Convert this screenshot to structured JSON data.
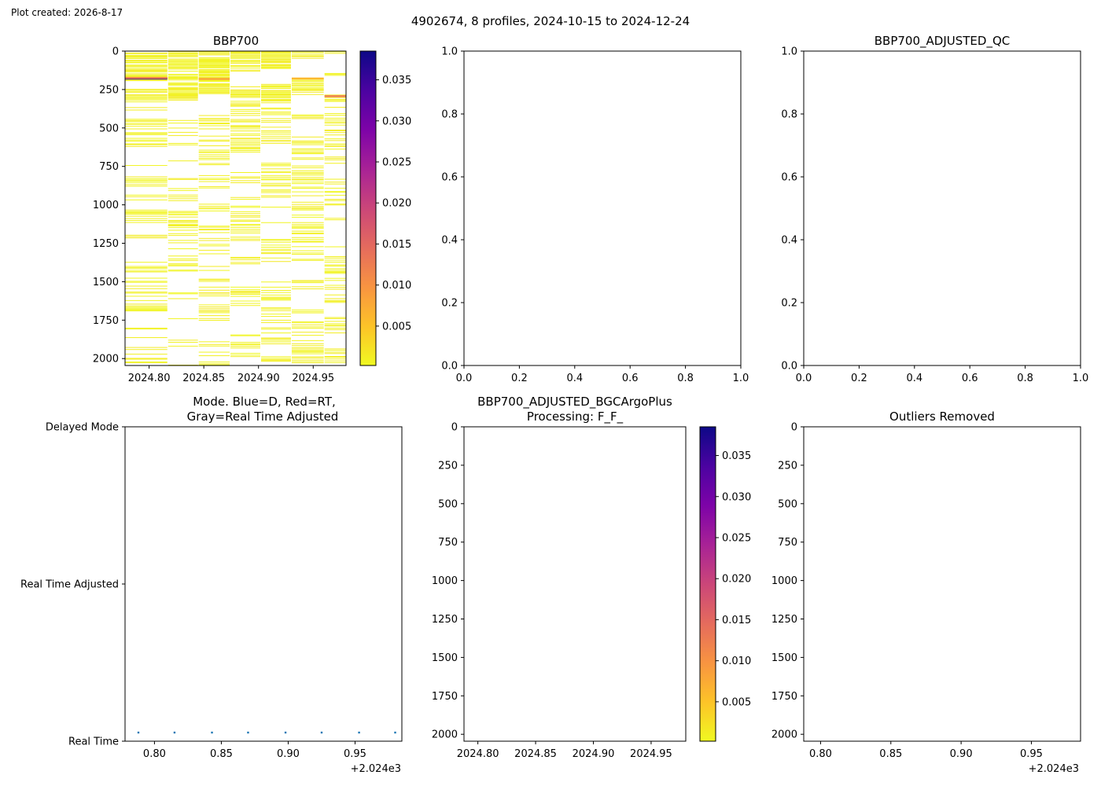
{
  "figure": {
    "created_label": "Plot created: 2026-8-17",
    "suptitle": "4902674, 8 profiles, 2024-10-15 to 2024-12-24"
  },
  "chart_data": [
    {
      "id": "bbp700",
      "type": "heatmap",
      "title": "BBP700",
      "x_ticks": [
        "2024.80",
        "2024.85",
        "2024.90",
        "2024.95"
      ],
      "x_tick_values": [
        2024.8,
        2024.85,
        2024.9,
        2024.95
      ],
      "xlim": [
        2024.778,
        2024.98
      ],
      "y_ticks": [
        "0",
        "250",
        "500",
        "750",
        "1000",
        "1250",
        "1500",
        "1750",
        "2000"
      ],
      "y_tick_values": [
        0,
        250,
        500,
        750,
        1000,
        1250,
        1500,
        1750,
        2000
      ],
      "ylim": [
        2045,
        0
      ],
      "y_inverted": true,
      "colorbar": {
        "cmap": "plasma_r",
        "range": [
          0.0002,
          0.0385
        ],
        "ticks": [
          "0.005",
          "0.010",
          "0.015",
          "0.020",
          "0.025",
          "0.030",
          "0.035"
        ],
        "tick_values": [
          0.005,
          0.01,
          0.015,
          0.02,
          0.025,
          0.03,
          0.035
        ]
      },
      "profiles": [
        {
          "x0": 2024.778,
          "x1": 2024.817
        },
        {
          "x0": 2024.817,
          "x1": 2024.845
        },
        {
          "x0": 2024.845,
          "x1": 2024.874
        },
        {
          "x0": 2024.874,
          "x1": 2024.902
        },
        {
          "x0": 2024.902,
          "x1": 2024.93
        },
        {
          "x0": 2024.93,
          "x1": 2024.96
        },
        {
          "x0": 2024.96,
          "x1": 2024.98
        }
      ],
      "highlights": [
        {
          "profile": 0,
          "depth": 172,
          "value": 0.038
        },
        {
          "profile": 0,
          "depth": 168,
          "value": 0.012
        },
        {
          "profile": 2,
          "depth": 175,
          "value": 0.008
        },
        {
          "profile": 5,
          "depth": 172,
          "value": 0.006
        },
        {
          "profile": 6,
          "depth": 287,
          "value": 0.012
        }
      ]
    },
    {
      "id": "empty-1",
      "type": "line",
      "title": "",
      "x_ticks": [
        "0.0",
        "0.2",
        "0.4",
        "0.6",
        "0.8",
        "1.0"
      ],
      "x_tick_values": [
        0,
        0.2,
        0.4,
        0.6,
        0.8,
        1.0
      ],
      "y_ticks": [
        "0.0",
        "0.2",
        "0.4",
        "0.6",
        "0.8",
        "1.0"
      ],
      "y_tick_values": [
        0,
        0.2,
        0.4,
        0.6,
        0.8,
        1.0
      ],
      "xlim": [
        0,
        1
      ],
      "ylim": [
        0,
        1
      ]
    },
    {
      "id": "bbp700-adjusted-qc",
      "type": "line",
      "title": "BBP700_ADJUSTED_QC",
      "x_ticks": [
        "0.0",
        "0.2",
        "0.4",
        "0.6",
        "0.8",
        "1.0"
      ],
      "x_tick_values": [
        0,
        0.2,
        0.4,
        0.6,
        0.8,
        1.0
      ],
      "y_ticks": [
        "0.0",
        "0.2",
        "0.4",
        "0.6",
        "0.8",
        "1.0"
      ],
      "y_tick_values": [
        0,
        0.2,
        0.4,
        0.6,
        0.8,
        1.0
      ],
      "xlim": [
        0,
        1
      ],
      "ylim": [
        0,
        1
      ]
    },
    {
      "id": "mode",
      "type": "scatter",
      "title_lines": [
        "Mode. Blue=D, Red=RT,",
        "Gray=Real Time Adjusted"
      ],
      "x_ticks": [
        "0.80",
        "0.85",
        "0.90",
        "0.95"
      ],
      "x_tick_values": [
        0.8,
        0.85,
        0.9,
        0.95
      ],
      "x_offset_label": "+2.024e3",
      "xlim": [
        0.778,
        0.985
      ],
      "y_ticks": [
        "Real Time",
        "Real Time Adjusted",
        "Delayed Mode"
      ],
      "y_tick_values": [
        0,
        1,
        2
      ],
      "ylim": [
        0,
        2
      ],
      "series": [
        {
          "x": [
            0.788,
            0.815,
            0.843,
            0.87,
            0.898,
            0.925,
            0.953,
            0.98
          ],
          "y": [
            0,
            0,
            0,
            0,
            0,
            0,
            0,
            0
          ],
          "color": "#1f77b4"
        }
      ]
    },
    {
      "id": "bbp700-adjusted-bgc",
      "type": "heatmap",
      "title_lines": [
        "BBP700_ADJUSTED_BGCArgoPlus",
        "Processing: F_F_"
      ],
      "x_ticks": [
        "2024.80",
        "2024.85",
        "2024.90",
        "2024.95"
      ],
      "x_tick_values": [
        2024.8,
        2024.85,
        2024.9,
        2024.95
      ],
      "xlim": [
        2024.788,
        2024.98
      ],
      "y_ticks": [
        "0",
        "250",
        "500",
        "750",
        "1000",
        "1250",
        "1500",
        "1750",
        "2000"
      ],
      "y_tick_values": [
        0,
        250,
        500,
        750,
        1000,
        1250,
        1500,
        1750,
        2000
      ],
      "ylim": [
        2045,
        0
      ],
      "colorbar": {
        "cmap": "plasma_r",
        "range": [
          0.0002,
          0.0385
        ],
        "ticks": [
          "0.005",
          "0.010",
          "0.015",
          "0.020",
          "0.025",
          "0.030",
          "0.035"
        ],
        "tick_values": [
          0.005,
          0.01,
          0.015,
          0.02,
          0.025,
          0.03,
          0.035
        ]
      }
    },
    {
      "id": "outliers",
      "type": "scatter",
      "title": "Outliers Removed",
      "x_ticks": [
        "0.80",
        "0.85",
        "0.90",
        "0.95"
      ],
      "x_tick_values": [
        0.8,
        0.85,
        0.9,
        0.95
      ],
      "x_offset_label": "+2.024e3",
      "xlim": [
        0.788,
        0.985
      ],
      "y_ticks": [
        "0",
        "250",
        "500",
        "750",
        "1000",
        "1250",
        "1500",
        "1750",
        "2000"
      ],
      "y_tick_values": [
        0,
        250,
        500,
        750,
        1000,
        1250,
        1500,
        1750,
        2000
      ],
      "ylim": [
        2045,
        0
      ]
    }
  ]
}
